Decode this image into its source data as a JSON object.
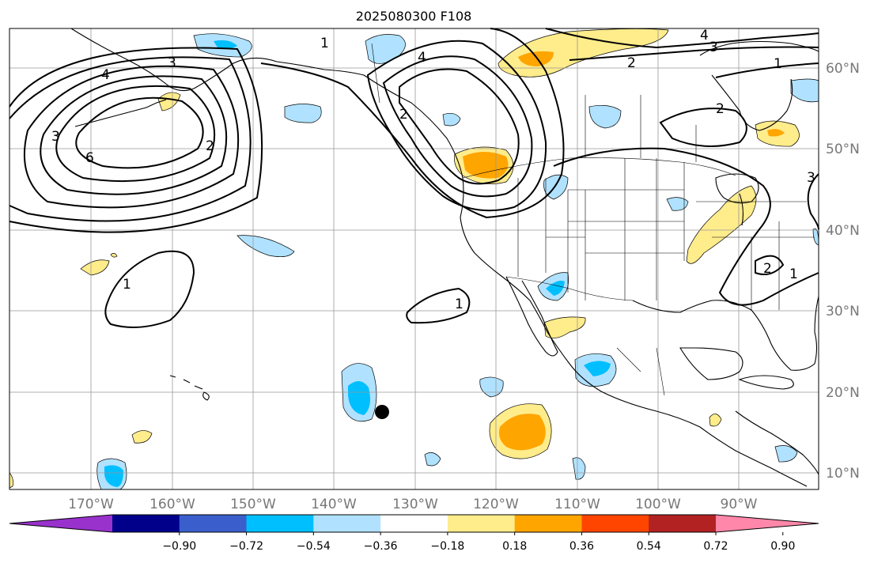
{
  "title": "2025080300 F108",
  "lat_labels": [
    "60°N",
    "50°N",
    "40°N",
    "30°N",
    "20°N",
    "10°N"
  ],
  "lon_labels": [
    "170°W",
    "160°W",
    "150°W",
    "140°W",
    "130°W",
    "120°W",
    "110°W",
    "100°W",
    "90°W"
  ],
  "colorbar": {
    "colors": [
      "#9932cc",
      "#00008b",
      "#3a5fcd",
      "#00bfff",
      "#b0e2ff",
      "#ffffff",
      "#ffec8b",
      "#ffa500",
      "#ff4500",
      "#b22222",
      "#ff88aa"
    ],
    "tick_labels": [
      "−0.90",
      "−0.72",
      "−0.54",
      "−0.36",
      "−0.18",
      "0.18",
      "0.36",
      "0.54",
      "0.72",
      "0.90"
    ]
  },
  "contour_labels": [
    "3",
    "4",
    "6",
    "2",
    "1",
    "1",
    "1",
    "4",
    "3",
    "3",
    "2",
    "4",
    "2",
    "1",
    "2",
    "3",
    "2",
    "1"
  ],
  "palette": {
    "positive_light": "#ffec8b",
    "positive_mid": "#ffa500",
    "negative_light": "#b0e2ff",
    "negative_mid": "#00bfff",
    "marker": "#000000"
  }
}
